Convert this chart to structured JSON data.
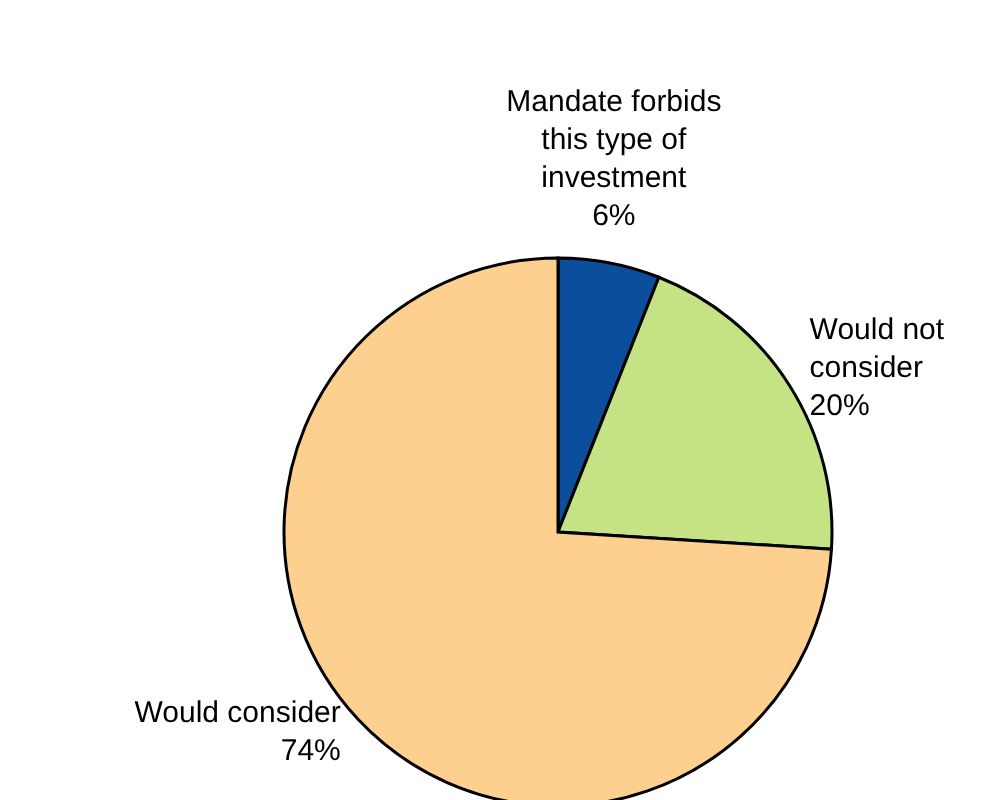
{
  "chart_data": {
    "type": "pie",
    "categories": [
      "Mandate forbids this type of investment",
      "Would not consider",
      "Would consider"
    ],
    "values": [
      6,
      20,
      74
    ],
    "value_labels": [
      "6%",
      "20%",
      "74%"
    ],
    "colors": [
      "#0b4f9c",
      "#c5e384",
      "#fdd08f"
    ]
  }
}
